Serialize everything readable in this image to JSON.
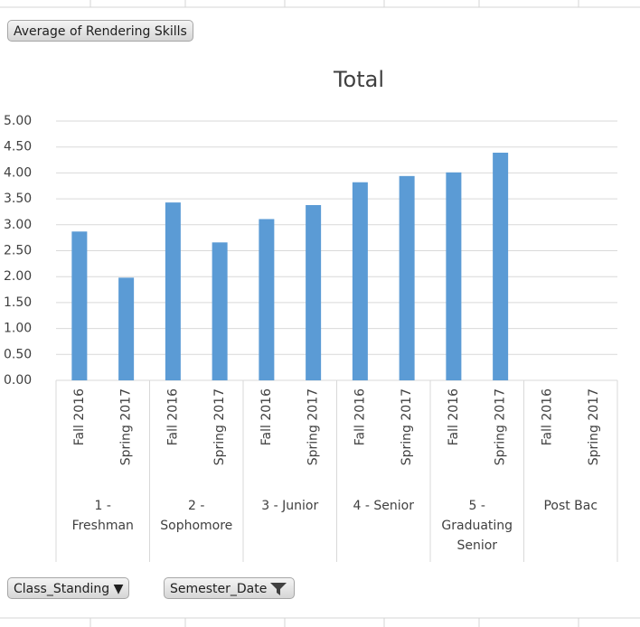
{
  "value_field_button": "Average of Rendering Skills",
  "axis_field_buttons": [
    "Class_Standing",
    "Semester_Date"
  ],
  "chart_data": {
    "type": "bar",
    "title": "Total",
    "categories": [
      "Fall 2016",
      "Spring 2017",
      "Fall 2016",
      "Spring 2017",
      "Fall 2016",
      "Spring 2017",
      "Fall 2016",
      "Spring 2017",
      "Fall 2016",
      "Spring 2017",
      "Fall 2016",
      "Spring 2017"
    ],
    "groups": [
      "1 - Freshman",
      "2 - Sophomore",
      "3 - Junior",
      "4 - Senior",
      "5 - Graduating Senior",
      "Post Bac"
    ],
    "values": [
      2.87,
      1.98,
      3.43,
      2.66,
      3.11,
      3.38,
      3.82,
      3.94,
      4.01,
      4.39,
      null,
      null
    ],
    "color": "#5b9bd5",
    "ylim": [
      0,
      5
    ],
    "yticks": [
      {
        "value": 0,
        "label": "0.00"
      },
      {
        "value": 0.5,
        "label": "0.50"
      },
      {
        "value": 1,
        "label": "1.00"
      },
      {
        "value": 1.5,
        "label": "1.50"
      },
      {
        "value": 2,
        "label": "2.00"
      },
      {
        "value": 2.5,
        "label": "2.50"
      },
      {
        "value": 3,
        "label": "3.00"
      },
      {
        "value": 3.5,
        "label": "3.50"
      },
      {
        "value": 4,
        "label": "4.00"
      },
      {
        "value": 4.5,
        "label": "4.50"
      },
      {
        "value": 5,
        "label": "5.00"
      }
    ],
    "grid": true
  }
}
